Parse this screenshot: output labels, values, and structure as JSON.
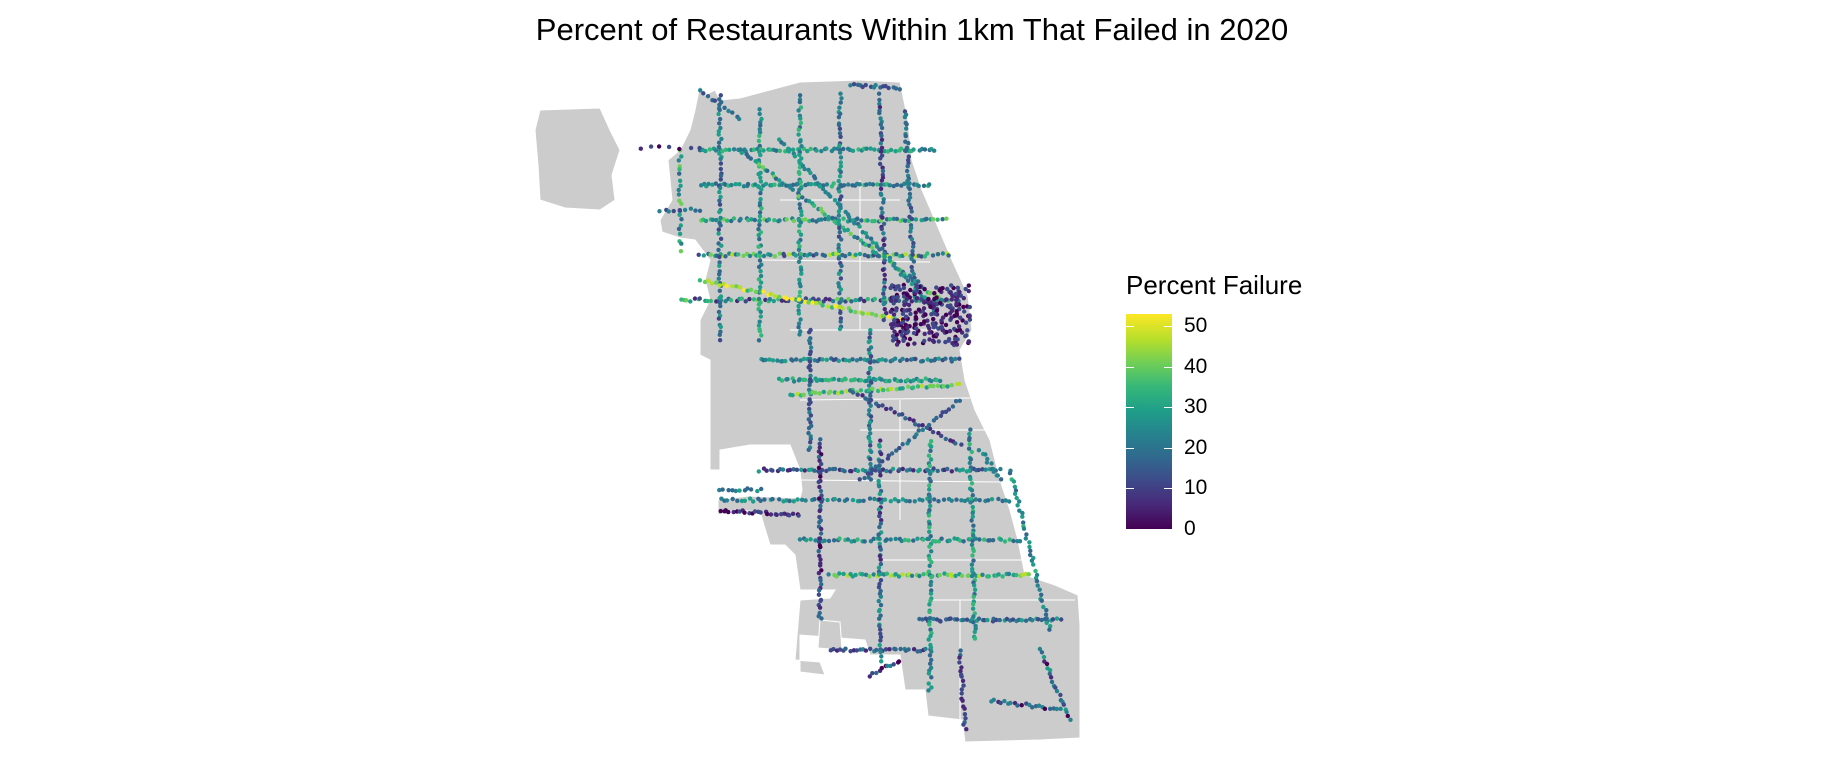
{
  "chart_data": {
    "type": "scatter",
    "title": "Percent of Restaurants Within 1km That Failed in 2020",
    "basemap": "Chicago city boundary (gray, community area outlines in white)",
    "colormap": "viridis",
    "legend": {
      "title": "Percent Failure",
      "placement": "right",
      "range": [
        0,
        53
      ],
      "ticks": [
        0,
        10,
        20,
        30,
        40,
        50
      ],
      "tick_labels": [
        "0",
        "10",
        "20",
        "30",
        "40",
        "50"
      ]
    },
    "grid": false,
    "axes": false
  }
}
